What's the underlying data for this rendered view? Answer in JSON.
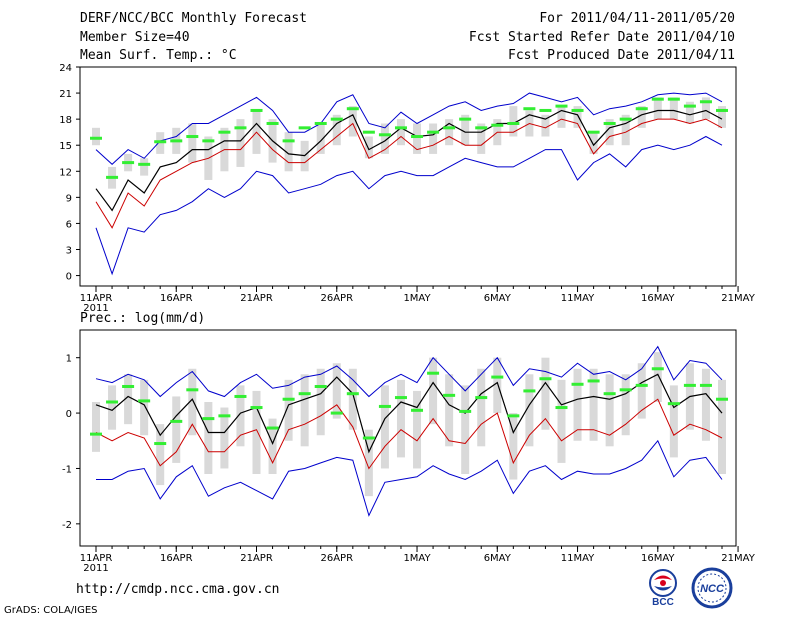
{
  "header": {
    "title": "DERF/NCC/BCC Monthly Forecast",
    "member_size": "Member Size=40",
    "variable": "Mean Surf. Temp.: °C",
    "period": "For 2011/04/11-2011/05/20",
    "refer_date": "Fcst Started Refer Date 2011/04/10",
    "produced_date": "Fcst Produced Date 2011/04/11"
  },
  "footer": {
    "url": "http://cmdp.ncc.cma.gov.cn",
    "grads": "GrADS: COLA/IGES",
    "logo_bcc": "BCC",
    "logo_ncc": "NCC"
  },
  "colors": {
    "max": "#0000cc",
    "min": "#0000cc",
    "mean": "#000000",
    "lower": "#cc0000",
    "box": "#d9d9d9",
    "obs": "#33ee33"
  },
  "chart_data": [
    {
      "type": "line",
      "title": "Mean Surf. Temp.: °C",
      "x": [
        "4/11",
        "4/12",
        "4/13",
        "4/14",
        "4/15",
        "4/16",
        "4/17",
        "4/18",
        "4/19",
        "4/20",
        "4/21",
        "4/22",
        "4/23",
        "4/24",
        "4/25",
        "4/26",
        "4/27",
        "4/28",
        "4/29",
        "4/30",
        "5/1",
        "5/2",
        "5/3",
        "5/4",
        "5/5",
        "5/6",
        "5/7",
        "5/8",
        "5/9",
        "5/10",
        "5/11",
        "5/12",
        "5/13",
        "5/14",
        "5/15",
        "5/16",
        "5/17",
        "5/18",
        "5/19",
        "5/20"
      ],
      "xticks": [
        "11APR",
        "16APR",
        "21APR",
        "26APR",
        "1MAY",
        "6MAY",
        "11MAY",
        "16MAY",
        "21MAY"
      ],
      "xtick_year": "2011",
      "ylim": [
        -1.2,
        24
      ],
      "yticks": [
        0,
        3,
        6,
        9,
        12,
        15,
        18,
        21,
        24
      ],
      "series": [
        {
          "name": "max",
          "values": [
            14.5,
            12.8,
            14.5,
            13.5,
            15.5,
            16,
            17.5,
            17.5,
            18.5,
            19.5,
            20.5,
            19,
            16.5,
            16.5,
            17.5,
            20,
            20.8,
            17.5,
            17,
            18.8,
            17.5,
            18.5,
            19.5,
            20,
            19,
            19.5,
            19.8,
            21,
            20.5,
            20,
            20.5,
            18.5,
            19.2,
            19.5,
            20,
            20.8,
            21,
            20.8,
            21,
            20
          ]
        },
        {
          "name": "mean",
          "values": [
            10,
            7.5,
            11,
            9.5,
            12.5,
            13,
            14.5,
            14.5,
            15.5,
            15.5,
            17.5,
            15.5,
            14,
            13.8,
            15.5,
            17.5,
            18.5,
            14.5,
            15.5,
            17,
            16,
            16.2,
            17.5,
            16.5,
            16.5,
            17.5,
            17.5,
            18.5,
            18,
            19,
            18.5,
            15,
            17,
            17.5,
            18.5,
            19,
            19,
            18.5,
            19,
            18
          ]
        },
        {
          "name": "lower",
          "values": [
            8.5,
            5.5,
            9.5,
            8,
            11,
            12,
            13,
            13.5,
            14.5,
            14.5,
            16.5,
            14.5,
            13,
            13,
            14.5,
            16,
            17.5,
            13.5,
            14.5,
            16,
            14.5,
            15,
            16,
            15,
            15,
            16.5,
            16.5,
            17.5,
            17,
            18,
            17.5,
            14,
            16,
            16.5,
            17.5,
            18,
            18,
            17.5,
            18,
            17
          ]
        },
        {
          "name": "min",
          "values": [
            5.5,
            0.2,
            5.5,
            5,
            7,
            7.5,
            8.5,
            10,
            9,
            10,
            12,
            11.5,
            9.5,
            10,
            10.5,
            11.5,
            12,
            10,
            11.5,
            12,
            11.5,
            11.5,
            12.5,
            13.5,
            13,
            12.5,
            12.5,
            13.5,
            14.5,
            14.5,
            11,
            13,
            14,
            12.5,
            14.5,
            15,
            14.5,
            15,
            16,
            15
          ]
        }
      ],
      "boxes": [
        [
          15,
          17
        ],
        [
          10,
          12.5
        ],
        [
          12,
          14
        ],
        [
          11.5,
          13.5
        ],
        [
          14,
          16.5
        ],
        [
          14,
          17
        ],
        [
          13,
          17.5
        ],
        [
          11,
          16
        ],
        [
          12,
          17
        ],
        [
          12.5,
          18
        ],
        [
          14,
          19
        ],
        [
          13,
          18
        ],
        [
          12,
          16.5
        ],
        [
          12,
          15.5
        ],
        [
          14,
          17.5
        ],
        [
          15,
          18.5
        ],
        [
          16,
          19.5
        ],
        [
          13.5,
          16
        ],
        [
          14,
          17.5
        ],
        [
          15,
          18
        ],
        [
          14,
          17.5
        ],
        [
          14,
          17.5
        ],
        [
          15,
          18
        ],
        [
          15,
          18.5
        ],
        [
          14,
          17.5
        ],
        [
          15,
          18
        ],
        [
          16,
          19.5
        ],
        [
          16,
          19
        ],
        [
          16,
          18.5
        ],
        [
          17,
          19.5
        ],
        [
          17,
          19.5
        ],
        [
          14,
          16.5
        ],
        [
          15,
          18
        ],
        [
          15,
          18.5
        ],
        [
          17,
          19.5
        ],
        [
          18,
          20.5
        ],
        [
          18,
          20.5
        ],
        [
          17.5,
          20
        ],
        [
          18,
          20.5
        ],
        [
          17,
          19.5
        ]
      ],
      "observed": [
        15.8,
        11.3,
        13,
        12.8,
        15.4,
        15.5,
        16,
        15.5,
        16.5,
        17,
        19,
        17.5,
        15.5,
        17,
        17.5,
        18,
        19.2,
        16.5,
        16.2,
        17,
        16,
        16.5,
        17,
        18,
        17,
        17.3,
        17.5,
        19.2,
        19,
        19.5,
        19,
        16.5,
        17.5,
        18,
        19.2,
        20.3,
        20.3,
        19.5,
        20,
        19
      ]
    },
    {
      "type": "line",
      "title": "Prec.: log(mm/d)",
      "x": [
        "4/11",
        "4/12",
        "4/13",
        "4/14",
        "4/15",
        "4/16",
        "4/17",
        "4/18",
        "4/19",
        "4/20",
        "4/21",
        "4/22",
        "4/23",
        "4/24",
        "4/25",
        "4/26",
        "4/27",
        "4/28",
        "4/29",
        "4/30",
        "5/1",
        "5/2",
        "5/3",
        "5/4",
        "5/5",
        "5/6",
        "5/7",
        "5/8",
        "5/9",
        "5/10",
        "5/11",
        "5/12",
        "5/13",
        "5/14",
        "5/15",
        "5/16",
        "5/17",
        "5/18",
        "5/19",
        "5/20"
      ],
      "xticks": [
        "11APR",
        "16APR",
        "21APR",
        "26APR",
        "1MAY",
        "6MAY",
        "11MAY",
        "16MAY",
        "21MAY"
      ],
      "xtick_year": "2011",
      "ylim": [
        -2.4,
        1.5
      ],
      "yticks": [
        -2,
        -1,
        0,
        1
      ],
      "series": [
        {
          "name": "max",
          "values": [
            0.62,
            0.55,
            0.7,
            0.6,
            0.3,
            0.55,
            0.75,
            0.4,
            0.3,
            0.55,
            0.7,
            0.45,
            0.5,
            0.65,
            0.7,
            0.85,
            0.6,
            0.3,
            0.55,
            0.7,
            0.55,
            1.0,
            0.7,
            0.4,
            0.7,
            1.0,
            0.5,
            0.8,
            0.75,
            0.65,
            0.9,
            0.7,
            0.75,
            0.6,
            0.8,
            1.2,
            0.6,
            0.95,
            0.9,
            0.6
          ]
        },
        {
          "name": "mean",
          "values": [
            0.15,
            0.05,
            0.3,
            0.15,
            -0.4,
            -0.05,
            0.25,
            -0.35,
            -0.35,
            0.0,
            0.1,
            -0.55,
            0.15,
            0.25,
            0.35,
            0.65,
            0.35,
            -0.7,
            -0.1,
            0.2,
            0.1,
            0.55,
            0.15,
            0.0,
            0.35,
            0.55,
            -0.35,
            0.15,
            0.55,
            0.15,
            0.25,
            0.3,
            0.25,
            0.35,
            0.55,
            0.7,
            0.1,
            0.3,
            0.35,
            0.0
          ]
        },
        {
          "name": "lower",
          "values": [
            -0.35,
            -0.5,
            -0.35,
            -0.45,
            -0.95,
            -0.7,
            -0.2,
            -0.7,
            -0.7,
            -0.4,
            -0.3,
            -0.9,
            -0.3,
            -0.2,
            -0.05,
            0.15,
            -0.25,
            -1.0,
            -0.6,
            -0.3,
            -0.5,
            -0.1,
            -0.5,
            -0.55,
            -0.2,
            0.0,
            -0.9,
            -0.4,
            -0.1,
            -0.5,
            -0.3,
            -0.3,
            -0.4,
            -0.2,
            0.05,
            0.25,
            -0.4,
            -0.2,
            -0.3,
            -0.45
          ]
        },
        {
          "name": "min",
          "values": [
            -1.2,
            -1.2,
            -1.05,
            -1.0,
            -1.55,
            -1.15,
            -0.95,
            -1.5,
            -1.35,
            -1.25,
            -1.4,
            -1.55,
            -1.05,
            -1.0,
            -0.9,
            -0.8,
            -0.85,
            -1.85,
            -1.25,
            -1.2,
            -1.15,
            -0.95,
            -1.1,
            -1.2,
            -1.05,
            -0.85,
            -1.45,
            -1.05,
            -0.95,
            -1.2,
            -1.05,
            -1.1,
            -1.1,
            -1.0,
            -0.85,
            -0.5,
            -1.15,
            -0.85,
            -0.8,
            -1.2
          ]
        },
        {
          "name": "observed",
          "values": [
            -0.38,
            0.2,
            0.48,
            0.22,
            -0.55,
            -0.15,
            0.42,
            -0.1,
            -0.05,
            0.3,
            0.1,
            -0.27,
            0.25,
            0.35,
            0.48,
            0.0,
            0.35,
            -0.45,
            0.12,
            0.28,
            0.05,
            0.72,
            0.32,
            0.03,
            0.28,
            0.65,
            -0.05,
            0.4,
            0.62,
            0.1,
            0.52,
            0.58,
            0.35,
            0.42,
            0.5,
            0.8,
            0.17,
            0.5,
            0.5,
            0.25
          ]
        }
      ],
      "boxes": [
        [
          -0.7,
          0.2
        ],
        [
          -0.3,
          0.5
        ],
        [
          -0.2,
          0.7
        ],
        [
          -0.4,
          0.6
        ],
        [
          -1.3,
          -0.2
        ],
        [
          -0.9,
          0.3
        ],
        [
          -0.4,
          0.8
        ],
        [
          -1.1,
          0.2
        ],
        [
          -1.0,
          0.1
        ],
        [
          -0.6,
          0.5
        ],
        [
          -1.1,
          0.4
        ],
        [
          -1.1,
          -0.1
        ],
        [
          -0.5,
          0.6
        ],
        [
          -0.6,
          0.7
        ],
        [
          -0.4,
          0.8
        ],
        [
          -0.1,
          0.9
        ],
        [
          -0.3,
          0.8
        ],
        [
          -1.5,
          -0.3
        ],
        [
          -1.0,
          0.5
        ],
        [
          -0.8,
          0.6
        ],
        [
          -1.0,
          0.4
        ],
        [
          -0.2,
          1.0
        ],
        [
          -0.6,
          0.7
        ],
        [
          -1.1,
          0.5
        ],
        [
          -0.6,
          0.8
        ],
        [
          0.0,
          1.0
        ],
        [
          -1.2,
          0.0
        ],
        [
          -0.6,
          0.7
        ],
        [
          -0.3,
          1.0
        ],
        [
          -0.9,
          0.6
        ],
        [
          -0.5,
          0.8
        ],
        [
          -0.5,
          0.8
        ],
        [
          -0.6,
          0.7
        ],
        [
          -0.4,
          0.7
        ],
        [
          -0.1,
          0.9
        ],
        [
          0.2,
          1.1
        ],
        [
          -0.8,
          0.5
        ],
        [
          -0.3,
          0.9
        ],
        [
          -0.5,
          0.8
        ],
        [
          -1.1,
          0.6
        ]
      ],
      "observed": [
        -0.38,
        0.2,
        0.48,
        0.22,
        -0.55,
        -0.15,
        0.42,
        -0.1,
        -0.05,
        0.3,
        0.1,
        -0.27,
        0.25,
        0.35,
        0.48,
        0.0,
        0.35,
        -0.45,
        0.12,
        0.28,
        0.05,
        0.72,
        0.32,
        0.03,
        0.28,
        0.65,
        -0.05,
        0.4,
        0.62,
        0.1,
        0.52,
        0.58,
        0.35,
        0.42,
        0.5,
        0.8,
        0.17,
        0.5,
        0.5,
        0.25
      ]
    }
  ]
}
